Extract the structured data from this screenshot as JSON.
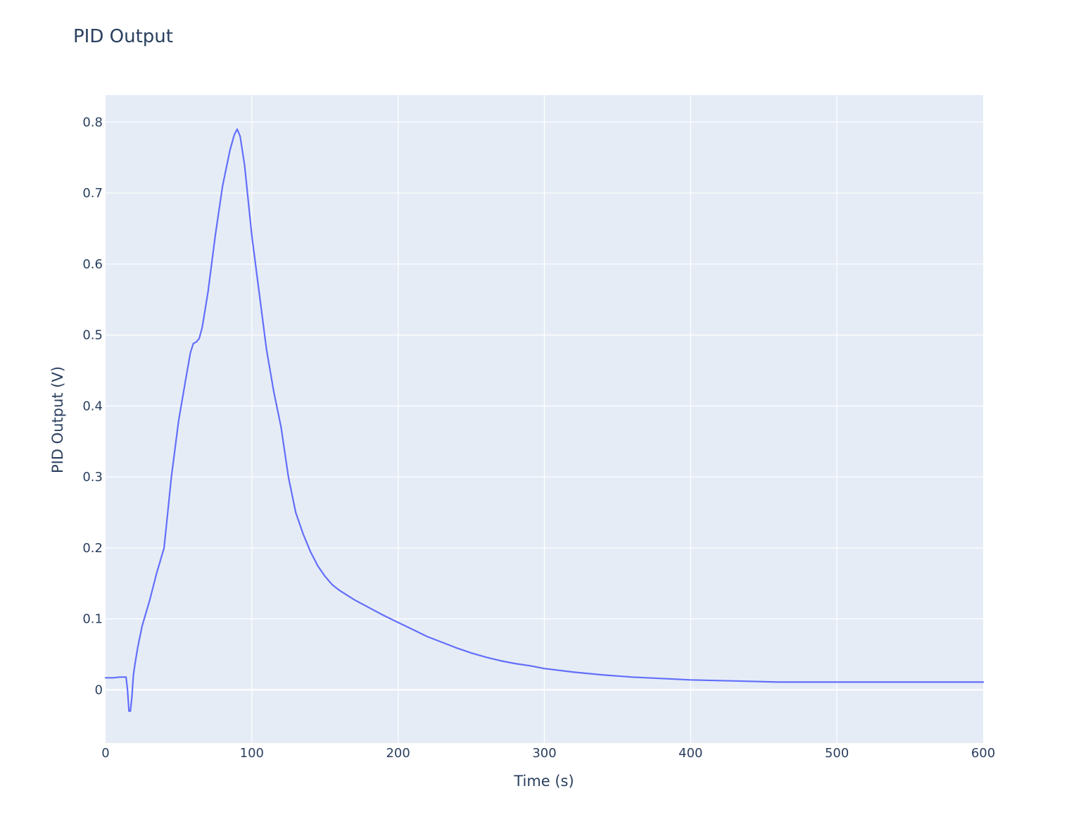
{
  "chart_data": {
    "type": "line",
    "title": "PID Output",
    "xlabel": "Time (s)",
    "ylabel": "PID Output (V)",
    "xlim": [
      0,
      600
    ],
    "ylim": [
      -0.075,
      0.838
    ],
    "x_ticks": [
      0,
      100,
      200,
      300,
      400,
      500,
      600
    ],
    "x_tick_labels": [
      "0",
      "100",
      "200",
      "300",
      "400",
      "500",
      "600"
    ],
    "y_ticks": [
      0,
      0.1,
      0.2,
      0.3,
      0.4,
      0.5,
      0.6,
      0.7,
      0.8
    ],
    "y_tick_labels": [
      "0",
      "0.1",
      "0.2",
      "0.3",
      "0.4",
      "0.5",
      "0.6",
      "0.7",
      "0.8"
    ],
    "grid": true,
    "legend": "none",
    "series": [
      {
        "color": "#636efa",
        "x": [
          0,
          5,
          10,
          14,
          15,
          16,
          17,
          18,
          19,
          20,
          22,
          25,
          30,
          35,
          40,
          42,
          45,
          50,
          55,
          58,
          60,
          62,
          64,
          66,
          70,
          75,
          80,
          85,
          88,
          90,
          92,
          95,
          100,
          105,
          110,
          115,
          120,
          125,
          130,
          135,
          140,
          145,
          150,
          155,
          160,
          170,
          180,
          190,
          200,
          210,
          220,
          230,
          240,
          250,
          260,
          270,
          280,
          290,
          300,
          320,
          340,
          360,
          380,
          400,
          420,
          440,
          460,
          480,
          500,
          550,
          600
        ],
        "y": [
          0.017,
          0.017,
          0.018,
          0.018,
          0.0,
          -0.03,
          -0.03,
          -0.01,
          0.02,
          0.035,
          0.06,
          0.09,
          0.125,
          0.165,
          0.2,
          0.24,
          0.3,
          0.38,
          0.44,
          0.475,
          0.488,
          0.49,
          0.495,
          0.51,
          0.56,
          0.64,
          0.71,
          0.76,
          0.782,
          0.79,
          0.78,
          0.74,
          0.64,
          0.56,
          0.48,
          0.42,
          0.37,
          0.3,
          0.25,
          0.22,
          0.195,
          0.175,
          0.16,
          0.148,
          0.14,
          0.127,
          0.116,
          0.105,
          0.095,
          0.085,
          0.075,
          0.067,
          0.059,
          0.052,
          0.046,
          0.041,
          0.037,
          0.034,
          0.03,
          0.025,
          0.021,
          0.018,
          0.016,
          0.014,
          0.013,
          0.012,
          0.011,
          0.011,
          0.011,
          0.011,
          0.011
        ]
      }
    ]
  }
}
